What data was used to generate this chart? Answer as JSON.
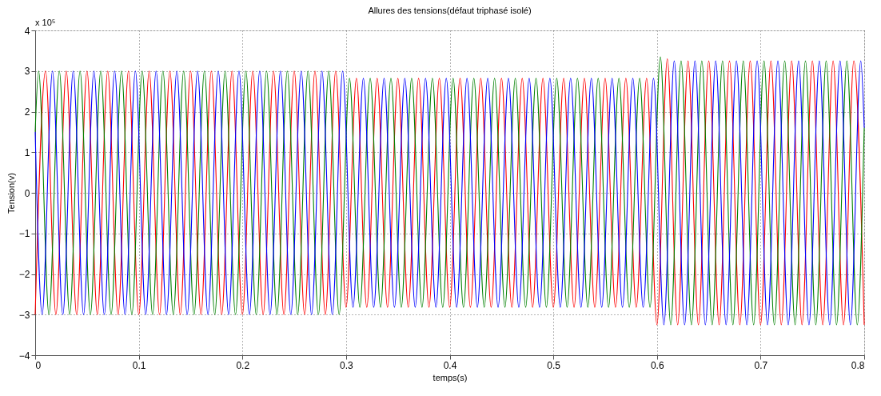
{
  "chart_data": {
    "type": "line",
    "title": "Allures des tensions(défaut triphasé isolé)",
    "xlabel": "temps(s)",
    "ylabel": "Tension(v)",
    "annotations": [
      "x 10⁵"
    ],
    "xlim": [
      0,
      0.8
    ],
    "xticks": [
      0,
      0.1,
      0.2,
      0.3,
      0.4,
      0.5,
      0.6,
      0.7,
      0.8
    ],
    "ylim": [
      -4,
      4
    ],
    "yticks": [
      -4,
      -3,
      -2,
      -1,
      0,
      1,
      2,
      3,
      4
    ],
    "grid": true,
    "line_style": "solid",
    "series": [
      {
        "color": "#ff0000",
        "x": [
          0,
          0.01,
          0.02,
          0.03,
          0.04,
          0.05,
          0.06,
          0.07,
          0.08,
          0.09,
          0.1,
          0.11,
          0.12,
          0.13,
          0.14,
          0.15,
          0.16,
          0.17,
          0.18,
          0.19,
          0.2,
          0.21,
          0.22,
          0.23,
          0.24,
          0.25,
          0.26,
          0.27,
          0.28,
          0.29,
          0.3,
          0.31,
          0.32,
          0.33,
          0.34,
          0.35,
          0.36,
          0.37,
          0.38,
          0.39,
          0.4,
          0.41,
          0.42,
          0.43,
          0.44,
          0.45,
          0.46,
          0.47,
          0.48,
          0.49,
          0.5,
          0.51,
          0.52,
          0.53,
          0.54,
          0.55,
          0.56,
          0.57,
          0.58,
          0.59,
          0.6,
          0.61,
          0.62,
          0.63,
          0.64,
          0.65,
          0.66,
          0.67,
          0.68,
          0.69,
          0.7,
          0.71,
          0.72,
          0.73,
          0.74,
          0.75,
          0.76,
          0.77,
          0.78,
          0.79,
          0.8
        ],
        "values": [
          -3,
          3,
          -3,
          3,
          -3,
          3,
          -3,
          3,
          -3,
          3,
          -3,
          3,
          -3,
          3,
          -3,
          3,
          -3,
          3,
          -3,
          3,
          -3,
          3,
          -3,
          3,
          -3,
          3,
          -3,
          3,
          -3,
          3,
          -2.82,
          2.82,
          -2.82,
          2.82,
          -2.82,
          2.82,
          -2.82,
          2.82,
          -2.82,
          2.82,
          -2.82,
          2.82,
          -2.82,
          2.82,
          -2.82,
          2.82,
          -2.82,
          2.82,
          -2.82,
          2.82,
          -2.82,
          2.82,
          -2.82,
          2.82,
          -2.82,
          2.82,
          -2.82,
          2.82,
          -2.82,
          2.82,
          -3.25,
          3.3,
          -3.25,
          3.25,
          -3.25,
          3.25,
          -3.25,
          3.25,
          -3.25,
          3.25,
          -3.25,
          3.25,
          -3.25,
          3.25,
          -3.25,
          3.25,
          -3.25,
          3.25,
          -3.25,
          3.25,
          -3.25
        ]
      },
      {
        "color": "#008000",
        "x": [
          0,
          0.0033,
          0.0133,
          0.0233,
          0.0333,
          0.0433,
          0.0533,
          0.0633,
          0.0733,
          0.0833,
          0.0933,
          0.1033,
          0.1133,
          0.1233,
          0.1333,
          0.1433,
          0.1533,
          0.1633,
          0.1733,
          0.1833,
          0.1933,
          0.2033,
          0.2133,
          0.2233,
          0.2333,
          0.2433,
          0.2533,
          0.2633,
          0.2733,
          0.2833,
          0.2933,
          0.3033,
          0.3133,
          0.3233,
          0.3333,
          0.3433,
          0.3533,
          0.3633,
          0.3733,
          0.3833,
          0.3933,
          0.4033,
          0.4133,
          0.4233,
          0.4333,
          0.4433,
          0.4533,
          0.4633,
          0.4733,
          0.4833,
          0.4933,
          0.5033,
          0.5133,
          0.5233,
          0.5333,
          0.5433,
          0.5533,
          0.5633,
          0.5733,
          0.5833,
          0.5933,
          0.6033,
          0.6133,
          0.6233,
          0.6333,
          0.6433,
          0.6533,
          0.6633,
          0.6733,
          0.6833,
          0.6933,
          0.7033,
          0.7133,
          0.7233,
          0.7333,
          0.7433,
          0.7533,
          0.7633,
          0.7733,
          0.7833,
          0.7933,
          0.8
        ],
        "values": [
          1.5,
          3,
          -3,
          3,
          -3,
          3,
          -3,
          3,
          -3,
          3,
          -3,
          3,
          -3,
          3,
          -3,
          3,
          -3,
          3,
          -3,
          3,
          -3,
          3,
          -3,
          3,
          -3,
          3,
          -3,
          3,
          -3,
          3,
          -3,
          2.82,
          -2.82,
          2.82,
          -2.82,
          2.82,
          -2.82,
          2.82,
          -2.82,
          2.82,
          -2.82,
          2.82,
          -2.82,
          2.82,
          -2.82,
          2.82,
          -2.82,
          2.82,
          -2.82,
          2.82,
          -2.82,
          2.82,
          -2.82,
          2.82,
          -2.82,
          2.82,
          -2.82,
          2.82,
          -2.82,
          2.82,
          -2.82,
          3.35,
          -3.25,
          3.25,
          -3.25,
          3.25,
          -3.25,
          3.25,
          -3.25,
          3.25,
          -3.25,
          3.25,
          -3.25,
          3.25,
          -3.25,
          3.25,
          -3.25,
          3.25,
          -3.25,
          3.25,
          -3.25,
          1.6
        ]
      },
      {
        "color": "#0000ff",
        "x": [
          0,
          0.0067,
          0.0167,
          0.0267,
          0.0367,
          0.0467,
          0.0567,
          0.0667,
          0.0767,
          0.0867,
          0.0967,
          0.1067,
          0.1167,
          0.1267,
          0.1367,
          0.1467,
          0.1567,
          0.1667,
          0.1767,
          0.1867,
          0.1967,
          0.2067,
          0.2167,
          0.2267,
          0.2367,
          0.2467,
          0.2567,
          0.2667,
          0.2767,
          0.2867,
          0.2967,
          0.3067,
          0.3167,
          0.3267,
          0.3367,
          0.3467,
          0.3567,
          0.3667,
          0.3767,
          0.3867,
          0.3967,
          0.4067,
          0.4167,
          0.4267,
          0.4367,
          0.4467,
          0.4567,
          0.4667,
          0.4767,
          0.4867,
          0.4967,
          0.5067,
          0.5167,
          0.5267,
          0.5367,
          0.5467,
          0.5567,
          0.5667,
          0.5767,
          0.5867,
          0.5967,
          0.6067,
          0.6167,
          0.6267,
          0.6367,
          0.6467,
          0.6567,
          0.6667,
          0.6767,
          0.6867,
          0.6967,
          0.7067,
          0.7167,
          0.7267,
          0.7367,
          0.7467,
          0.7567,
          0.7667,
          0.7767,
          0.7867,
          0.7967,
          0.8
        ],
        "values": [
          1.5,
          -3,
          3,
          -3,
          3,
          -3,
          3,
          -3,
          3,
          -3,
          3,
          -3,
          3,
          -3,
          3,
          -3,
          3,
          -3,
          3,
          -3,
          3,
          -3,
          3,
          -3,
          3,
          -3,
          3,
          -3,
          3,
          -3,
          3,
          -2.82,
          2.82,
          -2.82,
          2.82,
          -2.82,
          2.82,
          -2.82,
          2.82,
          -2.82,
          2.82,
          -2.82,
          2.82,
          -2.82,
          2.82,
          -2.82,
          2.82,
          -2.82,
          2.82,
          -2.82,
          2.82,
          -2.82,
          2.82,
          -2.82,
          2.82,
          -2.82,
          2.82,
          -2.82,
          2.82,
          -2.82,
          2.82,
          -3.25,
          3.25,
          -3.25,
          3.25,
          -3.25,
          3.25,
          -3.25,
          3.25,
          -3.25,
          3.25,
          -3.25,
          3.25,
          -3.25,
          3.25,
          -3.25,
          3.25,
          -3.25,
          3.25,
          -3.25,
          3.25,
          1.6
        ]
      }
    ]
  }
}
